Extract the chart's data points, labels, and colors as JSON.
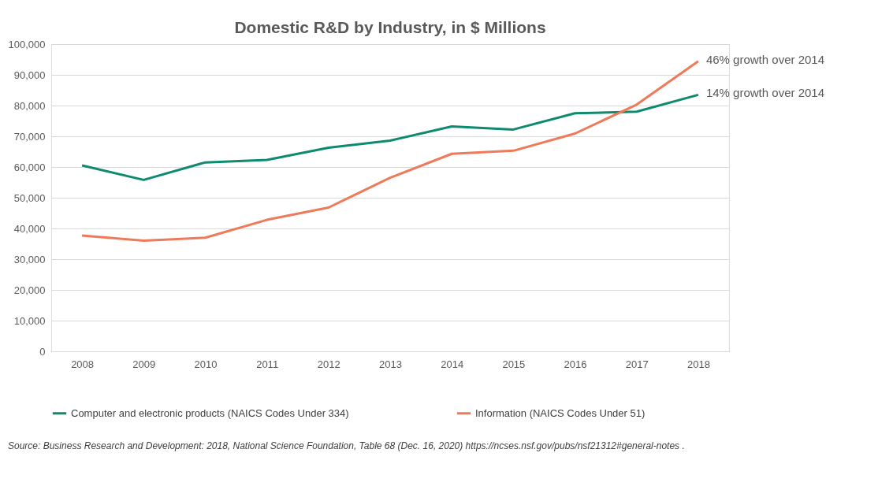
{
  "chart_data": {
    "type": "line",
    "title": "Domestic R&D by Industry, in $ Millions",
    "categories": [
      "2008",
      "2009",
      "2010",
      "2011",
      "2012",
      "2013",
      "2014",
      "2015",
      "2016",
      "2017",
      "2018"
    ],
    "series": [
      {
        "name": "Computer and electronic products (NAICS Codes Under 334)",
        "color": "#0e8a6e",
        "values": [
          60500,
          55800,
          61500,
          62300,
          66300,
          68600,
          73200,
          72200,
          77500,
          78000,
          83500
        ]
      },
      {
        "name": "Information (NAICS Codes Under 51)",
        "color": "#ef7a5a",
        "values": [
          37700,
          36000,
          37000,
          42800,
          46800,
          56500,
          64300,
          65300,
          70900,
          80300,
          94400
        ]
      }
    ],
    "ylim": [
      0,
      100000
    ],
    "yticks": [
      0,
      {
        "value": 10000,
        "label": "10,000"
      },
      {
        "value": 20000,
        "label": "20,000"
      },
      {
        "value": 30000,
        "label": "30,000"
      },
      {
        "value": 40000,
        "label": "40,000"
      },
      {
        "value": 50000,
        "label": "50,000"
      },
      {
        "value": 60000,
        "label": "60,000"
      },
      {
        "value": 70000,
        "label": "70,000"
      },
      {
        "value": 80000,
        "label": "80,000"
      },
      {
        "value": 90000,
        "label": "90,000"
      },
      {
        "value": 100000,
        "label": "100,000"
      }
    ],
    "grid": "y",
    "legend": "bottom",
    "marker": "none",
    "line_style": "solid",
    "annotations": [
      {
        "text": "46% growth over 2014",
        "x": "2018",
        "y": 94400
      },
      {
        "text": "14% growth over 2014",
        "x": "2018",
        "y": 83500
      },
      "Source: Business Research and Development: 2018, National Science Foundation, Table 68 (Dec. 16, 2020) https://ncses.nsf.gov/pubs/nsf21312#general-notes ."
    ]
  }
}
